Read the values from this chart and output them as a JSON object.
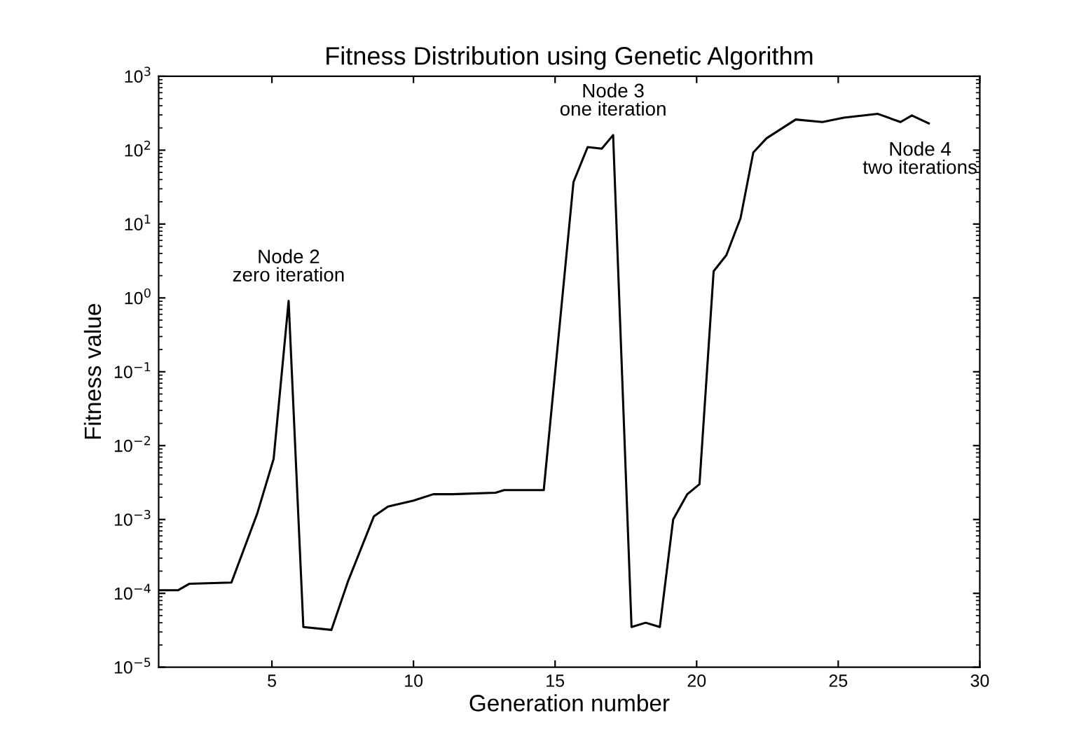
{
  "chart_data": {
    "type": "line",
    "title": "Fitness Distribution using Genetic Algorithm",
    "xlabel": "Generation number",
    "ylabel": "Fitness value",
    "x": [
      1,
      1.68,
      2.09,
      3.57,
      4.48,
      5.06,
      5.59,
      6.11,
      7.1,
      7.7,
      8.6,
      9.1,
      10.0,
      10.7,
      11.4,
      12.9,
      13.2,
      14.6,
      15.65,
      16.15,
      16.65,
      17.05,
      17.7,
      18.2,
      18.7,
      19.17,
      19.67,
      20.1,
      20.6,
      21.05,
      21.55,
      22.0,
      22.47,
      23.5,
      24.44,
      25.2,
      26.4,
      27.2,
      27.6,
      28.2
    ],
    "series": [
      {
        "color": "#000000",
        "values": [
          0.00011,
          0.00011,
          0.000135,
          0.00014,
          0.0012,
          0.0066,
          0.91,
          3.5e-05,
          3.2e-05,
          0.00015,
          0.0011,
          0.0015,
          0.0018,
          0.0022,
          0.0022,
          0.0023,
          0.0025,
          0.0025,
          37,
          110,
          105,
          160,
          3.5e-05,
          4e-05,
          3.5e-05,
          0.001,
          0.0022,
          0.003,
          2.3,
          3.8,
          12,
          93,
          145,
          260,
          240,
          275,
          310,
          240,
          295,
          230
        ]
      }
    ],
    "log": "y",
    "xlim": [
      1,
      30
    ],
    "ylim": [
      1e-05,
      1000
    ],
    "xticks": [
      5,
      10,
      15,
      20,
      25,
      30
    ],
    "yticks": [
      {
        "value": 1e-05,
        "label": "10$^{−5}$"
      },
      {
        "value": 0.0001,
        "label": "10$^{−4}$"
      },
      {
        "value": 0.001,
        "label": "10$^{−3}$"
      },
      {
        "value": 0.01,
        "label": "10$^{−2}$"
      },
      {
        "value": 0.1,
        "label": "10$^{−1}$"
      },
      {
        "value": 1,
        "label": "10$^{0}$"
      },
      {
        "value": 10,
        "label": "10$^{1}$"
      },
      {
        "value": 100,
        "label": "10$^{2}$"
      },
      {
        "value": 1000,
        "label": "10$^{3}$"
      }
    ],
    "grid": false,
    "marker": "none",
    "line_style": "solid",
    "annotations": [
      {
        "text": "Node 2\nzero iteration",
        "x": 5.59,
        "y": 0.91
      },
      {
        "text": "Node 3\none iteration",
        "x": 17.05,
        "y": 160
      },
      {
        "text": "Node 4\ntwo iterations",
        "x": 27.2,
        "y": 240
      }
    ]
  }
}
